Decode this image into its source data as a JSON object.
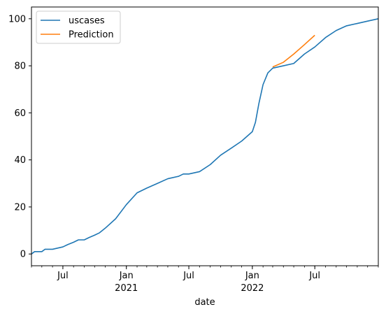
{
  "chart_data": {
    "type": "line",
    "title": "",
    "xlabel": "date",
    "ylabel": "",
    "x_axis": {
      "kind": "date",
      "xlim": [
        "2020-04-01",
        "2023-01-01"
      ],
      "major_ticks": [
        {
          "date": "2020-07-01",
          "label": "Jul",
          "sublabel": ""
        },
        {
          "date": "2021-01-01",
          "label": "Jan",
          "sublabel": "2021"
        },
        {
          "date": "2021-07-01",
          "label": "Jul",
          "sublabel": ""
        },
        {
          "date": "2022-01-01",
          "label": "Jan",
          "sublabel": "2022"
        },
        {
          "date": "2022-07-01",
          "label": "Jul",
          "sublabel": ""
        }
      ]
    },
    "y_axis": {
      "ylim": [
        -5,
        105
      ],
      "ticks": [
        0,
        20,
        40,
        60,
        80,
        100
      ],
      "tick_labels": [
        "0",
        "20",
        "40",
        "60",
        "80",
        "100"
      ]
    },
    "grid": false,
    "legend_position": "top-left",
    "series": [
      {
        "name": "uscases",
        "color": "#1f77b4",
        "points": [
          [
            "2020-04-01",
            0
          ],
          [
            "2020-04-10",
            1
          ],
          [
            "2020-05-01",
            1
          ],
          [
            "2020-05-10",
            2
          ],
          [
            "2020-06-01",
            2
          ],
          [
            "2020-07-01",
            3
          ],
          [
            "2020-07-15",
            4
          ],
          [
            "2020-08-01",
            5
          ],
          [
            "2020-08-15",
            6
          ],
          [
            "2020-09-01",
            6
          ],
          [
            "2020-09-15",
            7
          ],
          [
            "2020-10-01",
            8
          ],
          [
            "2020-10-15",
            9
          ],
          [
            "2020-11-01",
            11
          ],
          [
            "2020-12-01",
            15
          ],
          [
            "2021-01-01",
            21
          ],
          [
            "2021-02-01",
            26
          ],
          [
            "2021-03-01",
            28
          ],
          [
            "2021-04-01",
            30
          ],
          [
            "2021-05-01",
            32
          ],
          [
            "2021-06-01",
            33
          ],
          [
            "2021-06-15",
            34
          ],
          [
            "2021-07-01",
            34
          ],
          [
            "2021-08-01",
            35
          ],
          [
            "2021-09-01",
            38
          ],
          [
            "2021-10-01",
            42
          ],
          [
            "2021-11-01",
            45
          ],
          [
            "2021-12-01",
            48
          ],
          [
            "2022-01-01",
            52
          ],
          [
            "2022-01-10",
            56
          ],
          [
            "2022-01-20",
            64
          ],
          [
            "2022-02-01",
            72
          ],
          [
            "2022-02-15",
            77
          ],
          [
            "2022-03-01",
            79
          ],
          [
            "2022-04-01",
            80
          ],
          [
            "2022-05-01",
            81
          ],
          [
            "2022-06-01",
            85
          ],
          [
            "2022-07-01",
            88
          ],
          [
            "2022-08-01",
            92
          ],
          [
            "2022-09-01",
            95
          ],
          [
            "2022-10-01",
            97
          ],
          [
            "2022-11-01",
            98
          ],
          [
            "2022-12-01",
            99
          ],
          [
            "2023-01-01",
            100
          ]
        ]
      },
      {
        "name": "Prediction",
        "color": "#ff7f0e",
        "points": [
          [
            "2022-03-01",
            79.5
          ],
          [
            "2022-04-01",
            81.5
          ],
          [
            "2022-05-01",
            85
          ],
          [
            "2022-06-01",
            89
          ],
          [
            "2022-07-01",
            93
          ]
        ]
      }
    ]
  }
}
